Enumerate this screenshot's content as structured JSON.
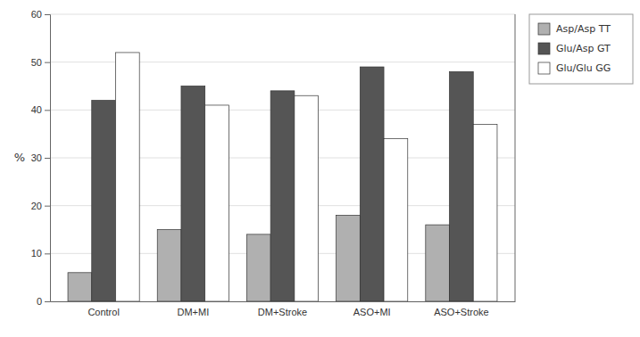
{
  "chart_data": {
    "type": "bar",
    "categories": [
      "Control",
      "DM+MI",
      "DM+Stroke",
      "ASO+MI",
      "ASO+Stroke"
    ],
    "series": [
      {
        "name": "Asp/Asp TT",
        "color": "#b0b0b0",
        "values": [
          6,
          15,
          14,
          18,
          16
        ]
      },
      {
        "name": "Glu/Asp GT",
        "color": "#555555",
        "values": [
          42,
          45,
          44,
          49,
          48
        ]
      },
      {
        "name": "Glu/Glu GG",
        "color": "#ffffff",
        "values": [
          52,
          41,
          43,
          34,
          37
        ]
      }
    ],
    "y_label": "%",
    "ylim": [
      0,
      60
    ],
    "yticks": [
      0,
      10,
      20,
      30,
      40,
      50,
      60
    ],
    "grid": true,
    "legend": "right"
  }
}
